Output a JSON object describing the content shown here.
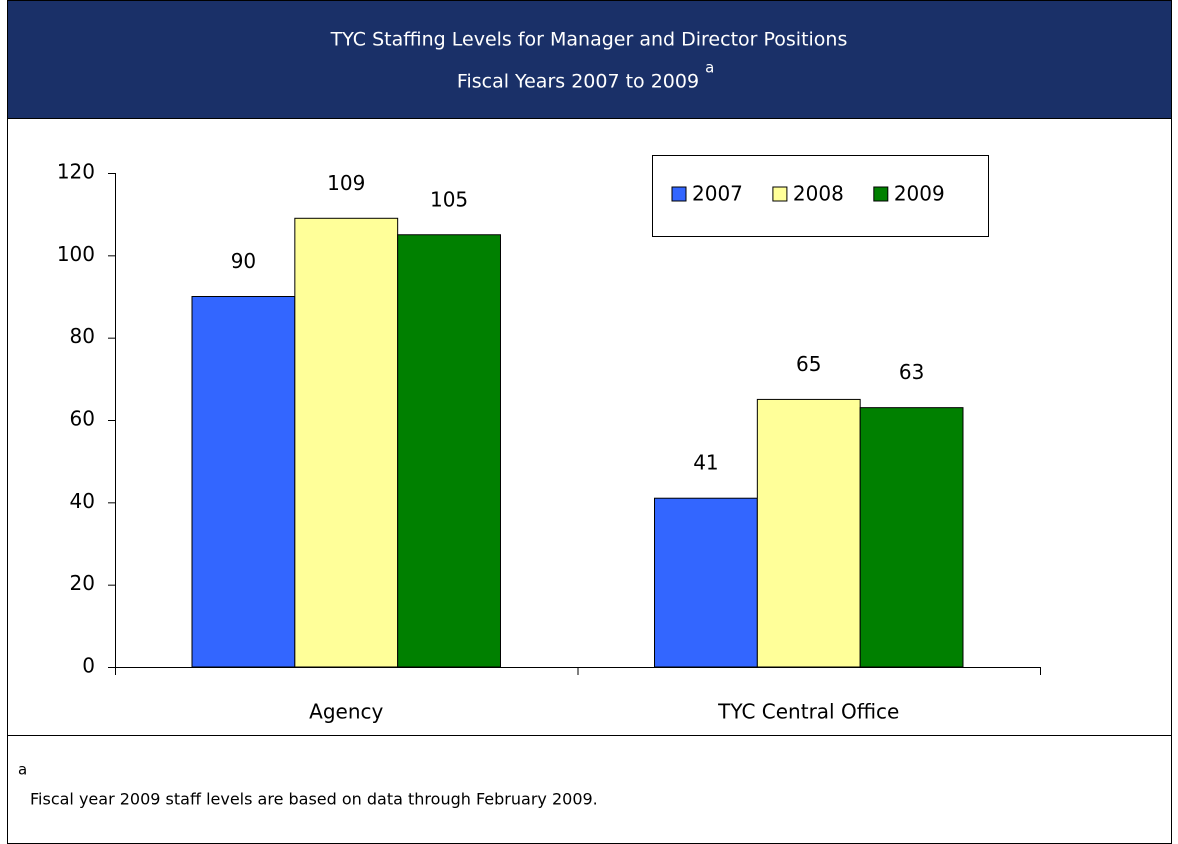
{
  "chart_data": {
    "type": "bar",
    "title": "TYC Staffing Levels for Manager and Director Positions",
    "subtitle": "Fiscal Years 2007 to 2009",
    "categories": [
      "Agency",
      "TYC Central Office"
    ],
    "series": [
      {
        "name": "2007",
        "color": "#3366ff",
        "values": [
          90,
          41
        ]
      },
      {
        "name": "2008",
        "color": "#ffff99",
        "values": [
          109,
          65
        ]
      },
      {
        "name": "2009",
        "color": "#008000",
        "values": [
          105,
          63
        ]
      }
    ],
    "ylim": [
      0,
      120
    ],
    "yticks": [
      0,
      20,
      40,
      60,
      80,
      100,
      120
    ],
    "grid": false,
    "legend": "top-right",
    "footnote": {
      "marker": "a",
      "text": "Fiscal year 2009 staff levels are based on data through February 2009."
    }
  }
}
